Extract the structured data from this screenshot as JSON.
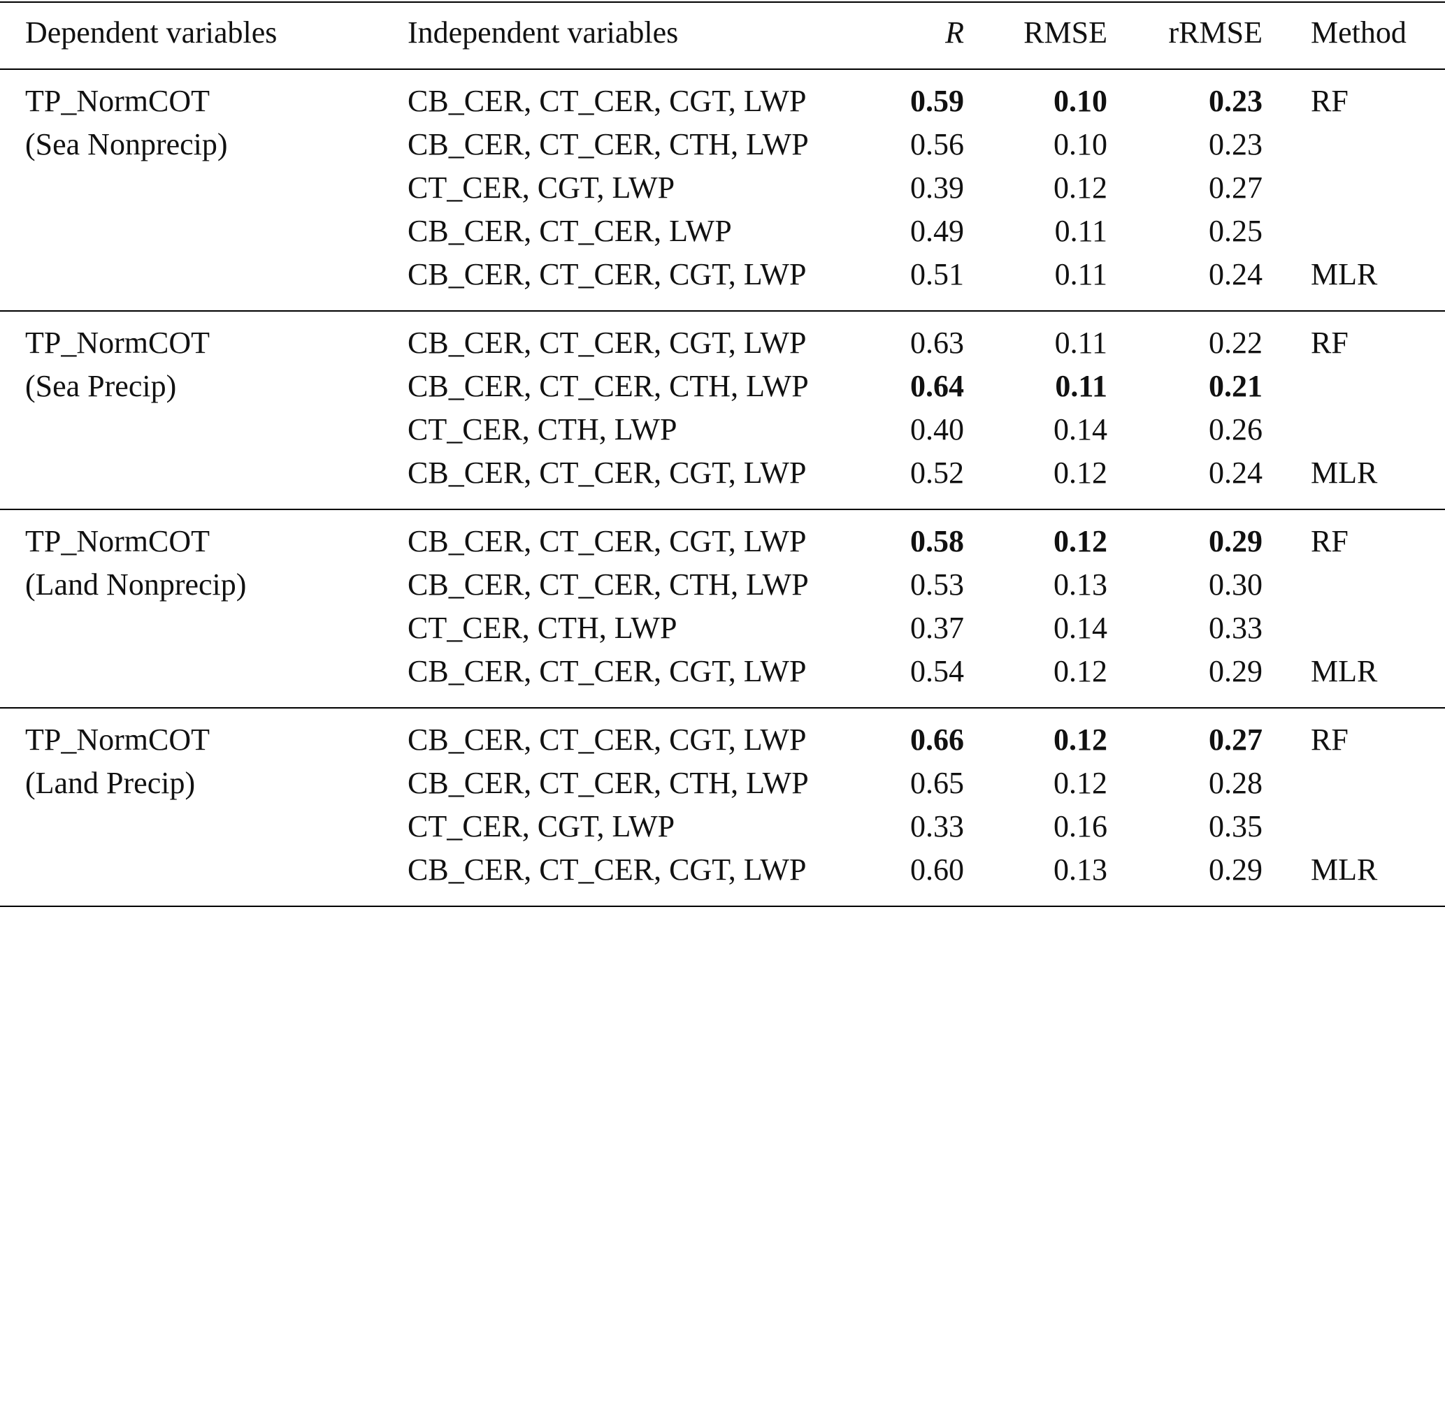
{
  "table": {
    "columns": [
      "Dependent variables",
      "Independent variables",
      "R",
      "RMSE",
      "rRMSE",
      "Method"
    ],
    "groups": [
      {
        "dependent": [
          "TP_NormCOT",
          "(Sea Nonprecip)"
        ],
        "rows": [
          {
            "independent": "CB_CER, CT_CER, CGT, LWP",
            "R": "0.59",
            "RMSE": "0.10",
            "rRMSE": "0.23",
            "method": "RF",
            "bold": true
          },
          {
            "independent": "CB_CER, CT_CER, CTH, LWP",
            "R": "0.56",
            "RMSE": "0.10",
            "rRMSE": "0.23"
          },
          {
            "independent": "CT_CER, CGT, LWP",
            "R": "0.39",
            "RMSE": "0.12",
            "rRMSE": "0.27"
          },
          {
            "independent": "CB_CER, CT_CER, LWP",
            "R": "0.49",
            "RMSE": "0.11",
            "rRMSE": "0.25"
          },
          {
            "independent": "CB_CER, CT_CER, CGT, LWP",
            "R": "0.51",
            "RMSE": "0.11",
            "rRMSE": "0.24",
            "method": "MLR"
          }
        ]
      },
      {
        "dependent": [
          "TP_NormCOT",
          "(Sea Precip)"
        ],
        "rows": [
          {
            "independent": "CB_CER, CT_CER, CGT, LWP",
            "R": "0.63",
            "RMSE": "0.11",
            "rRMSE": "0.22",
            "method": "RF"
          },
          {
            "independent": "CB_CER, CT_CER, CTH, LWP",
            "R": "0.64",
            "RMSE": "0.11",
            "rRMSE": "0.21",
            "bold": true
          },
          {
            "independent": "CT_CER, CTH, LWP",
            "R": "0.40",
            "RMSE": "0.14",
            "rRMSE": "0.26"
          },
          {
            "independent": "CB_CER, CT_CER, CGT, LWP",
            "R": "0.52",
            "RMSE": "0.12",
            "rRMSE": "0.24",
            "method": "MLR"
          }
        ]
      },
      {
        "dependent": [
          "TP_NormCOT",
          "(Land Nonprecip)"
        ],
        "rows": [
          {
            "independent": "CB_CER, CT_CER, CGT, LWP",
            "R": "0.58",
            "RMSE": "0.12",
            "rRMSE": "0.29",
            "method": "RF",
            "bold": true
          },
          {
            "independent": "CB_CER, CT_CER, CTH, LWP",
            "R": "0.53",
            "RMSE": "0.13",
            "rRMSE": "0.30"
          },
          {
            "independent": "CT_CER, CTH, LWP",
            "R": "0.37",
            "RMSE": "0.14",
            "rRMSE": "0.33"
          },
          {
            "independent": "CB_CER, CT_CER, CGT, LWP",
            "R": "0.54",
            "RMSE": "0.12",
            "rRMSE": "0.29",
            "method": "MLR"
          }
        ]
      },
      {
        "dependent": [
          "TP_NormCOT",
          "(Land Precip)"
        ],
        "rows": [
          {
            "independent": "CB_CER, CT_CER, CGT, LWP",
            "R": "0.66",
            "RMSE": "0.12",
            "rRMSE": "0.27",
            "method": "RF",
            "bold": true
          },
          {
            "independent": "CB_CER, CT_CER, CTH, LWP",
            "R": "0.65",
            "RMSE": "0.12",
            "rRMSE": "0.28"
          },
          {
            "independent": "CT_CER, CGT, LWP",
            "R": "0.33",
            "RMSE": "0.16",
            "rRMSE": "0.35"
          },
          {
            "independent": "CB_CER, CT_CER, CGT, LWP",
            "R": "0.60",
            "RMSE": "0.13",
            "rRMSE": "0.29",
            "method": "MLR"
          }
        ]
      }
    ]
  }
}
